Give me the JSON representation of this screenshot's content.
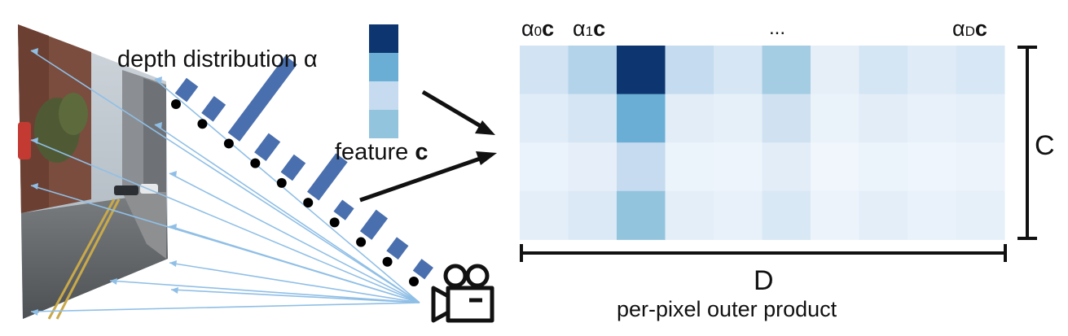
{
  "labels": {
    "depth_distribution": "depth distribution α",
    "feature_prefix": "feature ",
    "feature_symbol": "c",
    "col_first_alpha": "α",
    "col_first_sub": "0",
    "col_second_alpha": "α",
    "col_second_sub": "1",
    "col_last_alpha": "α",
    "col_last_sub": "D",
    "col_symbol": "c",
    "ellipsis": "...",
    "dimension_c": "C",
    "dimension_d": "D",
    "caption": "per-pixel outer product"
  },
  "colors": {
    "bars": "#4a6fae",
    "rays": "#90bfe6",
    "ink": "#111111"
  },
  "feature_vector": [
    "#0d3570",
    "#6aaed6",
    "#c6dbef",
    "#93c4de"
  ],
  "depth_distribution_bars": [
    0.2,
    0.22,
    1.0,
    0.25,
    0.23,
    0.5,
    0.12,
    0.28,
    0.18,
    0.14
  ],
  "outer_product_grid": [
    [
      "#d2e3f3",
      "#b3d3ea",
      "#0d3570",
      "#c4dbf0",
      "#d6e6f4",
      "#a4cde3",
      "#e6eff8",
      "#d4e5f4",
      "#dfebf7",
      "#d7e7f5"
    ],
    [
      "#e0edf8",
      "#d5e5f4",
      "#6aaed6",
      "#e2edf8",
      "#e6f0f9",
      "#d0e2f2",
      "#eaf2fa",
      "#e2edf8",
      "#e8f1fa",
      "#e5eff9"
    ],
    [
      "#eaf2fb",
      "#e6eff9",
      "#c6dbef",
      "#ebf3fb",
      "#edf4fb",
      "#e2edf8",
      "#f0f6fc",
      "#ebf3fb",
      "#eef5fc",
      "#ecf3fb"
    ],
    [
      "#e3eef9",
      "#dbe9f6",
      "#93c4de",
      "#e4eef9",
      "#e8f1fa",
      "#d9e8f5",
      "#ecf3fb",
      "#e4eef9",
      "#e9f2fa",
      "#e6f0f9"
    ]
  ]
}
